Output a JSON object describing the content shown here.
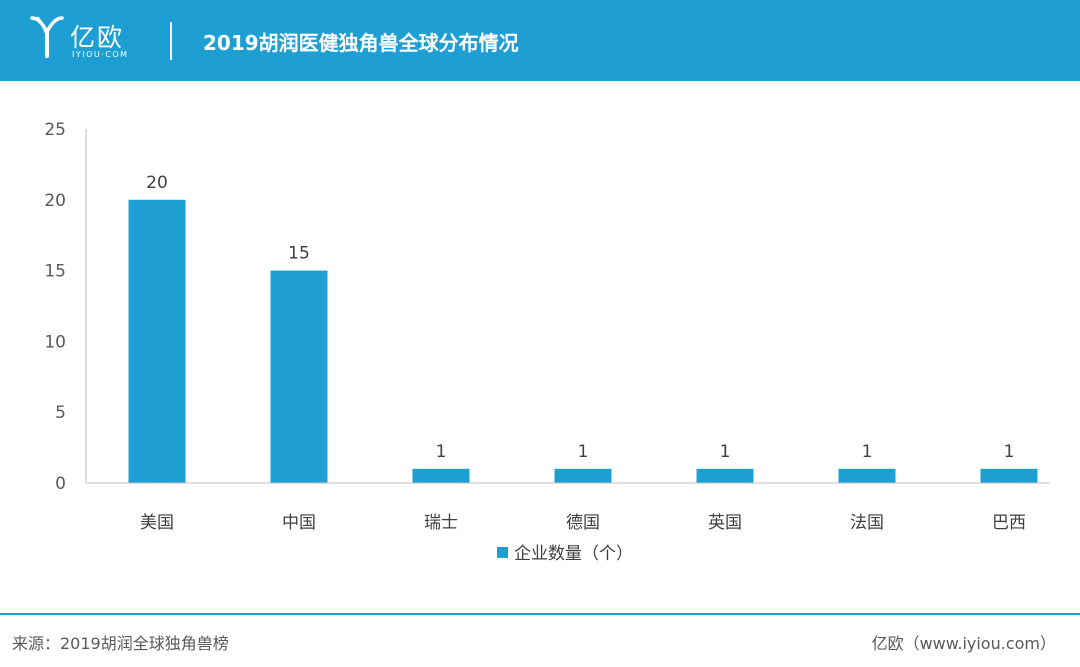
{
  "header": {
    "logo_cn": "亿欧",
    "logo_en": "IYIOU·COM",
    "title": "2019胡润医健独角兽全球分布情况",
    "background": "#1e9fd4"
  },
  "chart_data": {
    "type": "bar",
    "categories": [
      "美国",
      "中国",
      "瑞士",
      "德国",
      "英国",
      "法国",
      "巴西"
    ],
    "series": [
      {
        "name": "企业数量（个）",
        "values": [
          20,
          15,
          1,
          1,
          1,
          1,
          1
        ],
        "color": "#1e9fd4"
      }
    ],
    "yticks": [
      "0",
      "5",
      "10",
      "15",
      "20",
      "25"
    ],
    "ylim": [
      0,
      25
    ],
    "grid": false,
    "legend_position": "bottom-center"
  },
  "footer": {
    "source": "来源：2019胡润全球独角兽榜",
    "credit": "亿欧（www.iyiou.com）"
  }
}
